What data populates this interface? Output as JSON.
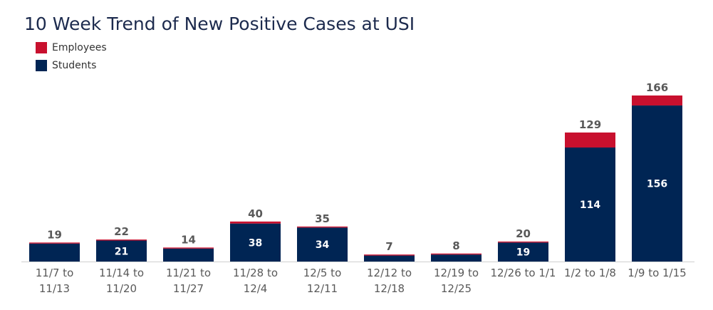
{
  "colors": {
    "employees": "#c8102e",
    "students": "#002554",
    "title": "#1c2a4d",
    "total_label": "#595959",
    "tick_label": "#595959",
    "inner_label": "#ffffff",
    "baseline": "#cfcfcf"
  },
  "chart_data": {
    "type": "bar",
    "stacked": true,
    "title": "10 Week Trend of New Positive Cases at USI",
    "legend": {
      "position": "top-left",
      "items": [
        "Employees",
        "Students"
      ]
    },
    "categories": [
      [
        "11/7 to",
        "11/13"
      ],
      [
        "11/14 to",
        "11/20"
      ],
      [
        "11/21 to",
        "11/27"
      ],
      [
        "11/28 to",
        "12/4"
      ],
      [
        "12/5 to",
        "12/11"
      ],
      [
        "12/12 to",
        "12/18"
      ],
      [
        "12/19 to",
        "12/25"
      ],
      [
        "12/26 to 1/1"
      ],
      [
        "1/2 to 1/8"
      ],
      [
        "1/9 to 1/15"
      ]
    ],
    "series": [
      {
        "name": "Students",
        "values": [
          18,
          21,
          13,
          38,
          34,
          6,
          7,
          19,
          114,
          156
        ]
      },
      {
        "name": "Employees",
        "values": [
          1,
          1,
          1,
          2,
          1,
          1,
          1,
          1,
          15,
          10
        ]
      }
    ],
    "student_labels_shown": [
      false,
      true,
      false,
      true,
      true,
      false,
      false,
      true,
      true,
      true
    ],
    "totals": [
      19,
      22,
      14,
      40,
      35,
      7,
      8,
      20,
      129,
      166
    ],
    "ylim": [
      0,
      166
    ],
    "grid": false,
    "xlabel": "",
    "ylabel": ""
  }
}
